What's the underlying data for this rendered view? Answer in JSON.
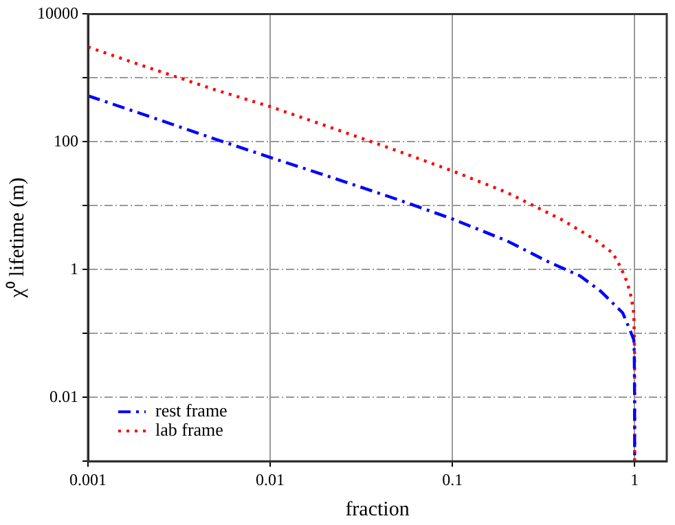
{
  "chart_data": {
    "type": "line",
    "xlabel": "fraction",
    "ylabel": "χ⁰ lifetime (m)",
    "log": "xy",
    "grid": true,
    "legend": "bottom left",
    "marker": "none",
    "xlim": [
      0.001,
      1.5
    ],
    "xticks": [
      0.001,
      0.01,
      0.1,
      1
    ],
    "ylim": [
      0.001,
      10000
    ],
    "yticks": [
      {
        "value": 0.001,
        "label": null
      },
      0.01,
      {
        "value": 0.1,
        "label": null
      },
      1,
      {
        "value": 10,
        "label": null
      },
      100,
      {
        "value": 1000,
        "label": null
      },
      10000
    ],
    "series": [
      {
        "name": "rest frame",
        "color": "#0000ff",
        "line_style": "dashed",
        "x": [
          0.001,
          0.002,
          0.005,
          0.01,
          0.02,
          0.05,
          0.1,
          0.2,
          0.34,
          0.5,
          0.65,
          0.86,
          0.95,
          0.99,
          0.995,
          0.999,
          0.9999
        ],
        "values": [
          525,
          270,
          110,
          57,
          30,
          12.5,
          6.2,
          2.8,
          1.3,
          0.8,
          0.46,
          0.21,
          0.107,
          0.079,
          0.05,
          0.01,
          0.001
        ]
      },
      {
        "name": "lab frame",
        "color": "#ff0000",
        "line_style": "dotted",
        "x": [
          0.001,
          0.002,
          0.005,
          0.01,
          0.02,
          0.05,
          0.1,
          0.2,
          0.4,
          0.6,
          0.76,
          0.84,
          0.91,
          0.96,
          0.99,
          0.999,
          0.9999
        ],
        "values": [
          3050,
          1550,
          650,
          355,
          180,
          72,
          35,
          16,
          6,
          3,
          1.8,
          1.07,
          0.63,
          0.36,
          0.2,
          0.05,
          0.001
        ]
      }
    ]
  }
}
